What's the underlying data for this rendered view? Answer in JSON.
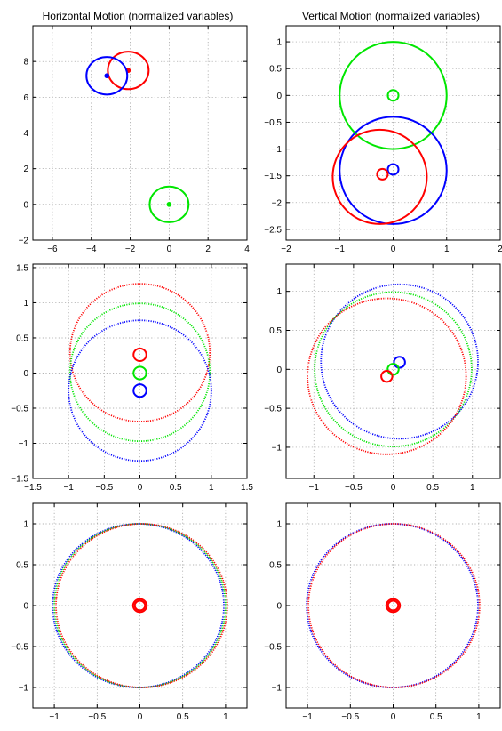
{
  "figure": {
    "titles": [
      "Horizontal Motion (normalized variables)",
      "Vertical Motion (normalized variables)"
    ]
  },
  "colors": {
    "red": "#ff0000",
    "green": "#00e600",
    "blue": "#0000ff"
  },
  "chart_data": [
    {
      "type": "scatter",
      "title": "Horizontal Motion (normalized variables)",
      "xlim": [
        -7,
        4
      ],
      "ylim": [
        -2,
        10
      ],
      "xticks": [
        -6,
        -4,
        -2,
        0,
        2,
        4
      ],
      "yticks": [
        -2,
        0,
        2,
        4,
        6,
        8
      ],
      "grid": true,
      "series": [
        {
          "color": "red",
          "style": "solid",
          "dot": true,
          "center": [
            -2.1,
            7.5
          ],
          "r": 1.05
        },
        {
          "color": "blue",
          "style": "solid",
          "dot": true,
          "center": [
            -3.2,
            7.2
          ],
          "r": 1.05
        },
        {
          "color": "green",
          "style": "solid",
          "dot": true,
          "center": [
            0,
            0
          ],
          "r": 1.0
        }
      ]
    },
    {
      "type": "scatter",
      "title": "Vertical Motion (normalized variables)",
      "xlim": [
        -2,
        2
      ],
      "ylim": [
        -2.7,
        1.3
      ],
      "xticks": [
        -2,
        -1,
        0,
        1,
        2
      ],
      "yticks": [
        -2.5,
        -2,
        -1.5,
        -1,
        -0.5,
        0,
        0.5,
        1
      ],
      "grid": true,
      "series": [
        {
          "color": "green",
          "style": "solid",
          "center": [
            0,
            0
          ],
          "r": 1.0
        },
        {
          "color": "green",
          "style": "solid",
          "center": [
            0,
            0
          ],
          "r": 0.1
        },
        {
          "color": "blue",
          "style": "solid",
          "center": [
            0,
            -1.4
          ],
          "r": 1.0
        },
        {
          "color": "blue",
          "style": "solid",
          "center": [
            0,
            -1.38
          ],
          "r": 0.1
        },
        {
          "color": "red",
          "style": "solid",
          "center": [
            -0.25,
            -1.52
          ],
          "r": 0.88
        },
        {
          "color": "red",
          "style": "solid",
          "center": [
            -0.2,
            -1.47
          ],
          "r": 0.1
        }
      ]
    },
    {
      "type": "scatter",
      "xlim": [
        -1.5,
        1.5
      ],
      "ylim": [
        -1.5,
        1.55
      ],
      "xticks": [
        -1.5,
        -1,
        -0.5,
        0,
        0.5,
        1,
        1.5
      ],
      "yticks": [
        -1.5,
        -1,
        -0.5,
        0,
        0.5,
        1,
        1.5
      ],
      "grid": true,
      "series": [
        {
          "color": "red",
          "style": "dotted",
          "center": [
            0,
            0.29
          ],
          "r": 0.98
        },
        {
          "color": "green",
          "style": "dotted",
          "center": [
            0,
            0.01
          ],
          "r": 0.98
        },
        {
          "color": "blue",
          "style": "dotted",
          "center": [
            0,
            -0.25
          ],
          "r": 1.0
        },
        {
          "color": "red",
          "style": "solid",
          "center": [
            0,
            0.26
          ],
          "r": 0.09
        },
        {
          "color": "green",
          "style": "solid",
          "center": [
            0,
            0.0
          ],
          "r": 0.09
        },
        {
          "color": "blue",
          "style": "solid",
          "center": [
            0,
            -0.25
          ],
          "r": 0.09
        }
      ]
    },
    {
      "type": "scatter",
      "xlim": [
        -1.35,
        1.35
      ],
      "ylim": [
        -1.4,
        1.35
      ],
      "xticks": [
        -1,
        -0.5,
        0,
        0.5,
        1
      ],
      "yticks": [
        -1,
        -0.5,
        0,
        0.5,
        1
      ],
      "grid": true,
      "series": [
        {
          "color": "blue",
          "style": "dotted",
          "center": [
            0.08,
            0.1
          ],
          "r": 0.99
        },
        {
          "color": "green",
          "style": "dotted",
          "center": [
            0.0,
            0.0
          ],
          "r": 0.99
        },
        {
          "color": "red",
          "style": "dotted",
          "center": [
            -0.08,
            -0.09
          ],
          "r": 1.0
        },
        {
          "color": "blue",
          "style": "solid",
          "center": [
            0.08,
            0.09
          ],
          "r": 0.07
        },
        {
          "color": "green",
          "style": "solid",
          "center": [
            0.0,
            0.0
          ],
          "r": 0.07
        },
        {
          "color": "red",
          "style": "solid",
          "center": [
            -0.08,
            -0.09
          ],
          "r": 0.07
        }
      ]
    },
    {
      "type": "scatter",
      "xlim": [
        -1.25,
        1.25
      ],
      "ylim": [
        -1.25,
        1.25
      ],
      "xticks": [
        -1,
        -0.5,
        0,
        0.5,
        1
      ],
      "yticks": [
        -1,
        -0.5,
        0,
        0.5,
        1
      ],
      "grid": true,
      "series": [
        {
          "color": "blue",
          "style": "dotted",
          "center": [
            -0.02,
            0
          ],
          "r": 1.0
        },
        {
          "color": "green",
          "style": "dotted",
          "center": [
            0,
            0
          ],
          "r": 1.0
        },
        {
          "color": "red",
          "style": "dotted",
          "center": [
            0.02,
            0
          ],
          "r": 1.0
        },
        {
          "color": "red",
          "style": "solid",
          "center": [
            0,
            0
          ],
          "r": 0.08
        },
        {
          "color": "red",
          "style": "solid",
          "center": [
            0,
            0
          ],
          "r": 0.06
        }
      ]
    },
    {
      "type": "scatter",
      "xlim": [
        -1.25,
        1.25
      ],
      "ylim": [
        -1.25,
        1.25
      ],
      "xticks": [
        -1,
        -0.5,
        0,
        0.5,
        1
      ],
      "yticks": [
        -1,
        -0.5,
        0,
        0.5,
        1
      ],
      "grid": true,
      "series": [
        {
          "color": "blue",
          "style": "dotted",
          "center": [
            -0.01,
            0
          ],
          "r": 1.0
        },
        {
          "color": "red",
          "style": "dotted",
          "center": [
            0.01,
            0
          ],
          "r": 1.0
        },
        {
          "color": "red",
          "style": "solid",
          "center": [
            0,
            0
          ],
          "r": 0.08
        },
        {
          "color": "red",
          "style": "solid",
          "center": [
            0,
            0
          ],
          "r": 0.06
        }
      ]
    }
  ]
}
